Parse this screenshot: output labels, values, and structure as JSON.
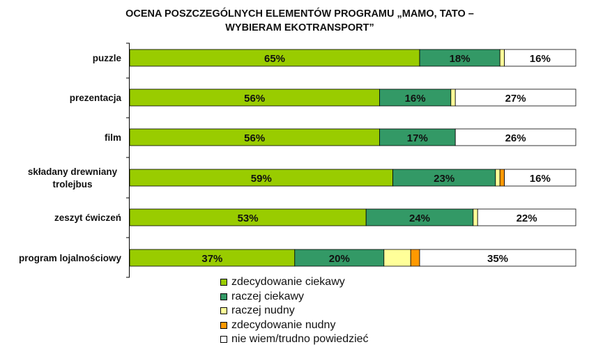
{
  "chart_data": {
    "type": "bar",
    "orientation": "horizontal",
    "stacked": true,
    "title_line1": "OCENA POSZCZEGÓLNYCH ELEMENTÓW PROGRAMU „MAMO, TATO –",
    "title_line2": "WYBIERAM EKOTRANSPORT”",
    "categories": [
      [
        "puzzle"
      ],
      [
        "prezentacja"
      ],
      [
        "film"
      ],
      [
        "składany drewniany",
        "trolejbus"
      ],
      [
        "zeszyt ćwiczeń"
      ],
      [
        "program lojalnościowy"
      ]
    ],
    "series": [
      {
        "name": "zdecydowanie ciekawy",
        "color": "#99cc00",
        "values": [
          65,
          56,
          56,
          59,
          53,
          37
        ]
      },
      {
        "name": "raczej ciekawy",
        "color": "#339966",
        "values": [
          18,
          16,
          17,
          23,
          24,
          20
        ]
      },
      {
        "name": "raczej nudny",
        "color": "#ffff99",
        "values": [
          1,
          1,
          0,
          1,
          1,
          6
        ]
      },
      {
        "name": "zdecydowanie nudny",
        "color": "#ff9900",
        "values": [
          0,
          0,
          0,
          1,
          0,
          2
        ]
      },
      {
        "name": "nie wiem/trudno powiedzieć",
        "color": "#ffffff",
        "values": [
          16,
          27,
          26,
          16,
          22,
          35
        ]
      }
    ],
    "labels": [
      [
        "65%",
        "18%",
        "",
        "",
        "16%"
      ],
      [
        "56%",
        "16%",
        "",
        "",
        "27%"
      ],
      [
        "56%",
        "17%",
        "",
        "",
        "26%"
      ],
      [
        "59%",
        "23%",
        "",
        "",
        "16%"
      ],
      [
        "53%",
        "24%",
        "",
        "",
        "22%"
      ],
      [
        "37%",
        "20%",
        "",
        "",
        "35%"
      ]
    ],
    "xlim": [
      0,
      100
    ],
    "legend_position": "bottom-center"
  }
}
